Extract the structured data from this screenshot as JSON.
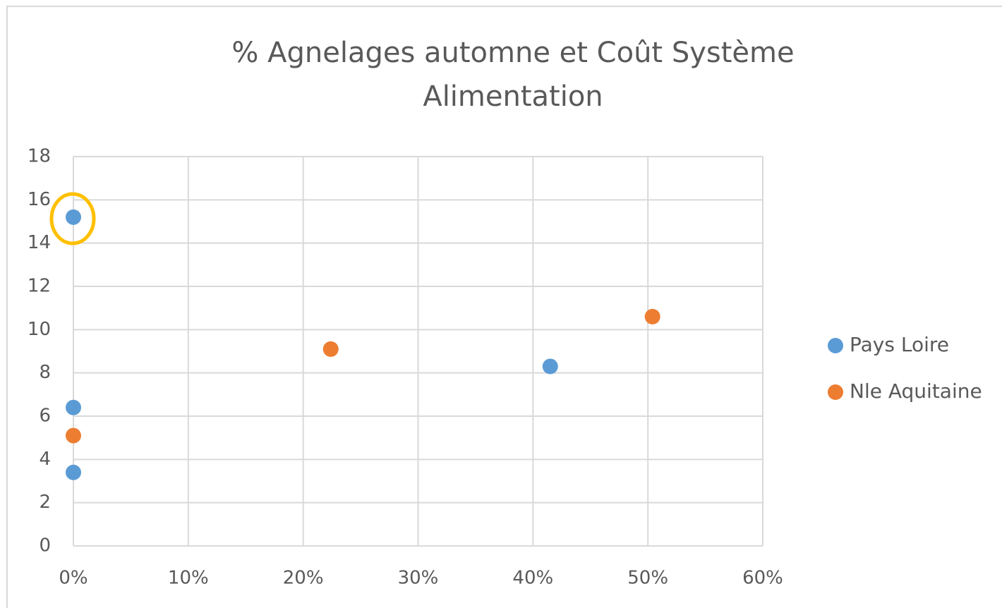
{
  "chart_data": {
    "type": "scatter",
    "title": "% Agnelages automne et Coût Système Alimentation",
    "series": [
      {
        "name": "Pays Loire",
        "color": "#5b9bd5",
        "x": [
          0,
          0,
          0,
          41.5
        ],
        "values": [
          15.2,
          6.4,
          3.4,
          8.3
        ]
      },
      {
        "name": "Nle Aquitaine",
        "color": "#ed7d31",
        "x": [
          0,
          22.4,
          50.4
        ],
        "values": [
          5.1,
          9.1,
          10.6
        ]
      }
    ],
    "xlim": [
      0,
      60
    ],
    "xticks": [
      {
        "value": 0,
        "label": "0%"
      },
      {
        "value": 10,
        "label": "10%"
      },
      {
        "value": 20,
        "label": "20%"
      },
      {
        "value": 30,
        "label": "30%"
      },
      {
        "value": 40,
        "label": "40%"
      },
      {
        "value": 50,
        "label": "50%"
      },
      {
        "value": 60,
        "label": "60%"
      }
    ],
    "ylim": [
      0,
      18
    ],
    "yticks": [
      0,
      2,
      4,
      6,
      8,
      10,
      12,
      14,
      16,
      18
    ],
    "grid": true,
    "legend": "right"
  }
}
